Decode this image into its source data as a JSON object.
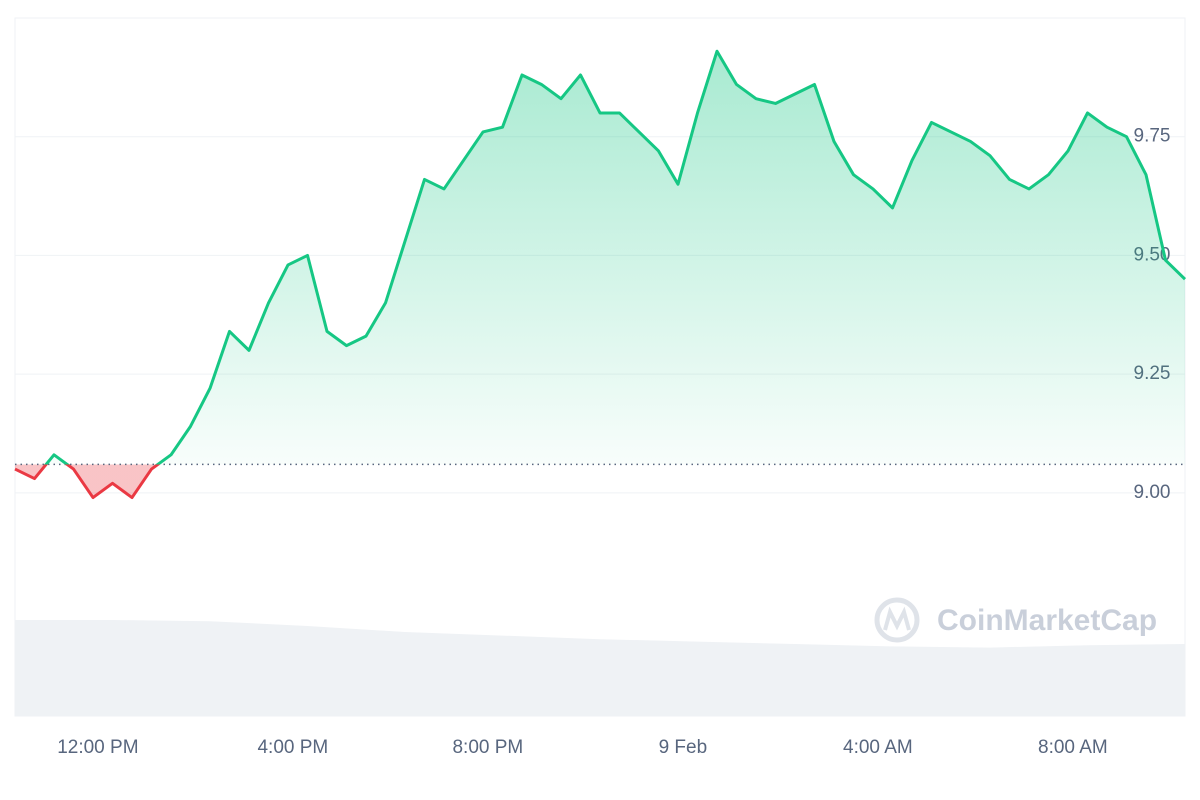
{
  "chart_data": {
    "type": "line",
    "x": [
      10.3,
      10.7,
      11.1,
      11.5,
      11.9,
      12.3,
      12.7,
      13.1,
      13.5,
      13.9,
      14.3,
      14.7,
      15.1,
      15.5,
      15.9,
      16.3,
      16.7,
      17.1,
      17.5,
      17.9,
      18.3,
      18.7,
      19.1,
      19.5,
      19.9,
      20.3,
      20.7,
      21.1,
      21.5,
      21.9,
      22.3,
      22.7,
      23.1,
      23.5,
      23.9,
      24.3,
      24.7,
      25.1,
      25.5,
      25.9,
      26.3,
      26.7,
      27.1,
      27.5,
      27.9,
      28.3,
      28.7,
      29.1,
      29.5,
      29.9,
      30.3,
      30.7,
      31.1,
      31.5,
      31.9,
      32.3,
      32.7,
      33.1,
      33.5,
      33.9,
      34.3
    ],
    "series": [
      {
        "color": "#16c784",
        "below_color": "#ea3943",
        "values": [
          9.05,
          9.03,
          9.08,
          9.05,
          8.99,
          9.02,
          8.99,
          9.05,
          9.08,
          9.14,
          9.22,
          9.34,
          9.3,
          9.4,
          9.48,
          9.5,
          9.34,
          9.31,
          9.33,
          9.4,
          9.53,
          9.66,
          9.64,
          9.7,
          9.76,
          9.77,
          9.88,
          9.86,
          9.83,
          9.88,
          9.8,
          9.8,
          9.76,
          9.72,
          9.65,
          9.8,
          9.93,
          9.86,
          9.83,
          9.82,
          9.84,
          9.86,
          9.74,
          9.67,
          9.64,
          9.6,
          9.7,
          9.78,
          9.76,
          9.74,
          9.71,
          9.66,
          9.64,
          9.67,
          9.72,
          9.8,
          9.77,
          9.75,
          9.67,
          9.49,
          9.45
        ]
      }
    ],
    "baseline": 9.06,
    "volume": {
      "color": "#eff2f5",
      "x": [
        10.3,
        12.3,
        14.3,
        16.3,
        18.3,
        20.3,
        22.3,
        24.3,
        26.3,
        28.3,
        30.3,
        32.3,
        34.3
      ],
      "values": [
        80,
        80,
        79,
        75,
        70,
        67,
        64,
        62,
        60,
        58,
        57,
        59,
        60
      ],
      "lim": [
        0,
        100
      ]
    },
    "xlim": [
      10.3,
      34.3
    ],
    "xticks": [
      {
        "value": 12,
        "label": "12:00 PM"
      },
      {
        "value": 16,
        "label": "4:00 PM"
      },
      {
        "value": 20,
        "label": "8:00 PM"
      },
      {
        "value": 24,
        "label": "9 Feb"
      },
      {
        "value": 28,
        "label": "4:00 AM"
      },
      {
        "value": 32,
        "label": "8:00 AM"
      }
    ],
    "ylim": [
      8.53,
      10.0
    ],
    "yticks": [
      {
        "value": 9,
        "label": "9.00"
      },
      9.25,
      {
        "value": 9.5,
        "label": "9.50"
      },
      9.75
    ],
    "grid": true,
    "watermark": "CoinMarketCap"
  }
}
